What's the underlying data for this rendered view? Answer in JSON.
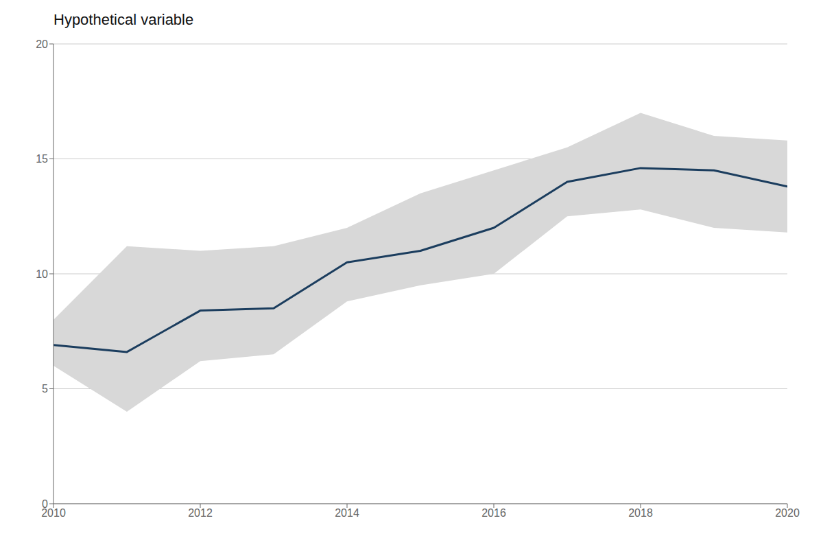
{
  "chart_data": {
    "type": "line",
    "title": "Hypothetical variable",
    "x": [
      2010,
      2011,
      2012,
      2013,
      2014,
      2015,
      2016,
      2017,
      2018,
      2019,
      2020
    ],
    "values": [
      6.9,
      6.6,
      8.4,
      8.5,
      10.5,
      11.0,
      12.0,
      14.0,
      14.6,
      14.5,
      13.8
    ],
    "color": "#1b3d5e",
    "band": {
      "lower": [
        6.0,
        4.0,
        6.2,
        6.5,
        8.8,
        9.5,
        10.0,
        12.5,
        12.8,
        12.0,
        11.8
      ],
      "upper": [
        8.0,
        11.2,
        11.0,
        11.2,
        12.0,
        13.5,
        14.5,
        15.5,
        17.0,
        16.0,
        15.8
      ],
      "color": "#d8d8d8"
    },
    "xlim": [
      2010,
      2020
    ],
    "xticks": [
      2010,
      2012,
      2014,
      2016,
      2018,
      2020
    ],
    "ylim": [
      0,
      20
    ],
    "yticks": [
      0,
      5,
      10,
      15,
      20
    ],
    "grid": "y"
  }
}
